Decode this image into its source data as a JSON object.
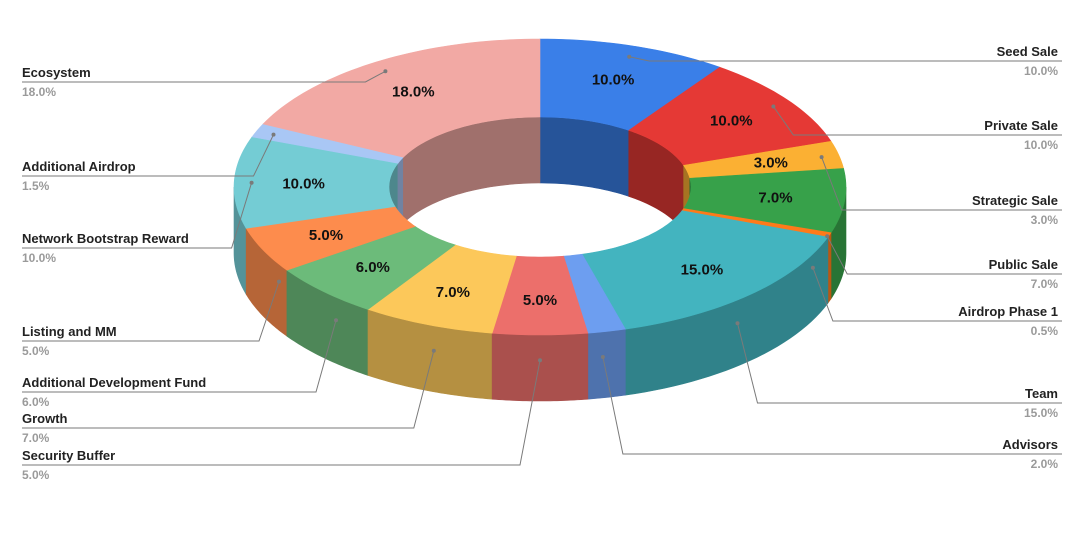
{
  "chart_data": {
    "type": "pie",
    "style": "3d-donut",
    "label_format": "percent",
    "slices": [
      {
        "name": "Seed Sale",
        "value": 10.0,
        "label": "10.0%",
        "color": "#3a7fe8",
        "side": "right"
      },
      {
        "name": "Private Sale",
        "value": 10.0,
        "label": "10.0%",
        "color": "#e53935",
        "side": "right"
      },
      {
        "name": "Strategic Sale",
        "value": 3.0,
        "label": "3.0%",
        "color": "#fbb033",
        "side": "right"
      },
      {
        "name": "Public Sale",
        "value": 7.0,
        "label": "7.0%",
        "color": "#37a14a",
        "side": "right"
      },
      {
        "name": "Airdrop Phase 1",
        "value": 0.5,
        "label": "0.5%",
        "color": "#ff7a1a",
        "side": "right"
      },
      {
        "name": "Team",
        "value": 15.0,
        "label": "15.0%",
        "color": "#43b4bf",
        "side": "right"
      },
      {
        "name": "Advisors",
        "value": 2.0,
        "label": "2.0%",
        "color": "#6d9ef0",
        "side": "right"
      },
      {
        "name": "Security Buffer",
        "value": 5.0,
        "label": "5.0%",
        "color": "#ec6f6b",
        "side": "left"
      },
      {
        "name": "Growth",
        "value": 7.0,
        "label": "7.0%",
        "color": "#fcc85a",
        "side": "left"
      },
      {
        "name": "Additional Development Fund",
        "value": 6.0,
        "label": "6.0%",
        "color": "#6cbb7a",
        "side": "left"
      },
      {
        "name": "Listing and MM",
        "value": 5.0,
        "label": "5.0%",
        "color": "#fd8c4d",
        "side": "left"
      },
      {
        "name": "Network Bootstrap Reward",
        "value": 10.0,
        "label": "10.0%",
        "color": "#74ccd4",
        "side": "left"
      },
      {
        "name": "Additional Airdrop",
        "value": 1.5,
        "label": "1.5%",
        "color": "#a9c7f5",
        "side": "left"
      },
      {
        "name": "Ecosystem",
        "value": 18.0,
        "label": "18.0%",
        "color": "#f2a9a4",
        "side": "left"
      }
    ],
    "legend": "leader-lines on both sides"
  }
}
